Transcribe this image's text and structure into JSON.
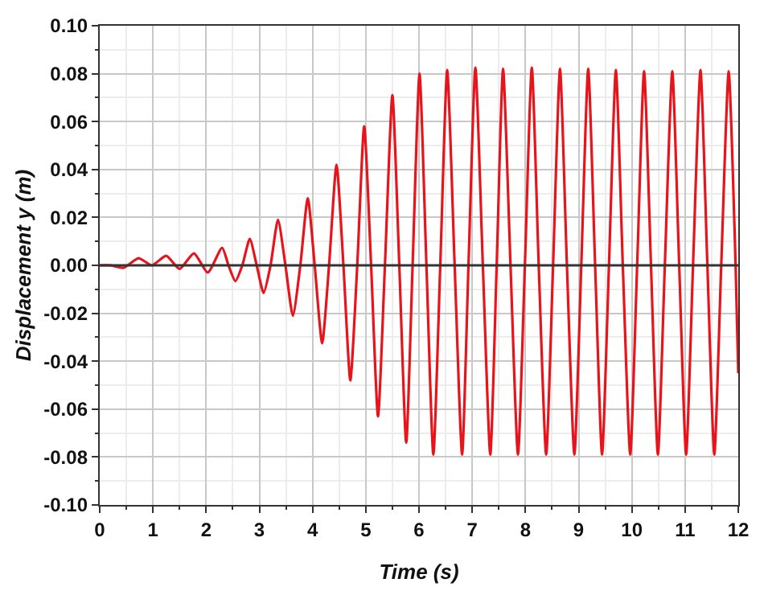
{
  "chart_data": {
    "type": "line",
    "xlabel": "Time (s)",
    "ylabel": "Displacement y (m)",
    "xlim": [
      0,
      12
    ],
    "xticks": [
      0,
      1,
      2,
      3,
      4,
      5,
      6,
      7,
      8,
      9,
      10,
      11,
      12
    ],
    "ylim": [
      -0.1,
      0.1
    ],
    "yticks": [
      {
        "value": -0.1,
        "label": "-0.10"
      },
      {
        "value": -0.08,
        "label": "-0.08"
      },
      {
        "value": -0.06,
        "label": "-0.06"
      },
      {
        "value": -0.04,
        "label": "-0.04"
      },
      {
        "value": -0.02,
        "label": "-0.02"
      },
      {
        "value": 0,
        "label": "0.00"
      },
      {
        "value": 0.02,
        "label": "0.02"
      },
      {
        "value": 0.04,
        "label": "0.04"
      },
      {
        "value": 0.06,
        "label": "0.06"
      },
      {
        "value": 0.08,
        "label": "0.08"
      },
      {
        "value": 0.1,
        "label": "0.10"
      }
    ],
    "grid": true,
    "marker": "none",
    "line_style": "solid",
    "ref_lines": [
      {
        "axis": "y",
        "value": 0,
        "color": "#333333",
        "line_style": "solid"
      }
    ],
    "series": [
      {
        "color": "#e8141c",
        "x": [
          0,
          0.2,
          0.45,
          0.73,
          0.98,
          1.25,
          1.5,
          1.77,
          2.03,
          2.3,
          2.42,
          2.55,
          2.68,
          2.82,
          2.95,
          3.08,
          3.21,
          3.35,
          3.49,
          3.63,
          3.77,
          3.91,
          4.04,
          4.18,
          4.31,
          4.45,
          4.58,
          4.71,
          4.84,
          4.97,
          5.1,
          5.23,
          5.36,
          5.5,
          5.63,
          5.76,
          5.88,
          6.01,
          6.14,
          6.27,
          6.4,
          6.53,
          6.67,
          6.81,
          6.93,
          7.06,
          7.2,
          7.34,
          7.46,
          7.58,
          7.72,
          7.86,
          7.99,
          8.12,
          8.25,
          8.39,
          8.52,
          8.65,
          8.78,
          8.92,
          9.05,
          9.18,
          9.31,
          9.44,
          9.57,
          9.7,
          9.83,
          9.97,
          10.1,
          10.23,
          10.36,
          10.49,
          10.62,
          10.76,
          10.89,
          11.02,
          11.15,
          11.29,
          11.42,
          11.55,
          11.68,
          11.82,
          11.95,
          12
        ],
        "values": [
          0,
          0,
          -0.001,
          0.003,
          0,
          0.004,
          -0.0015,
          0.005,
          -0.003,
          0.0073,
          0,
          -0.0066,
          0,
          0.011,
          0,
          -0.0115,
          0,
          0.019,
          0,
          -0.021,
          0,
          0.028,
          0,
          -0.0325,
          0,
          0.042,
          0,
          -0.048,
          0,
          0.058,
          0,
          -0.063,
          0,
          0.071,
          0,
          -0.074,
          0,
          0.08,
          0,
          -0.079,
          0,
          0.0815,
          0,
          -0.079,
          0,
          0.0825,
          0,
          -0.079,
          0,
          0.082,
          0,
          -0.079,
          0,
          0.0825,
          0,
          -0.079,
          0,
          0.082,
          0,
          -0.079,
          0,
          0.082,
          0,
          -0.079,
          0,
          0.0815,
          0,
          -0.079,
          0,
          0.081,
          0,
          -0.079,
          0,
          0.081,
          0,
          -0.079,
          0,
          0.0815,
          0,
          -0.079,
          0,
          0.081,
          0,
          -0.045
        ]
      }
    ]
  }
}
